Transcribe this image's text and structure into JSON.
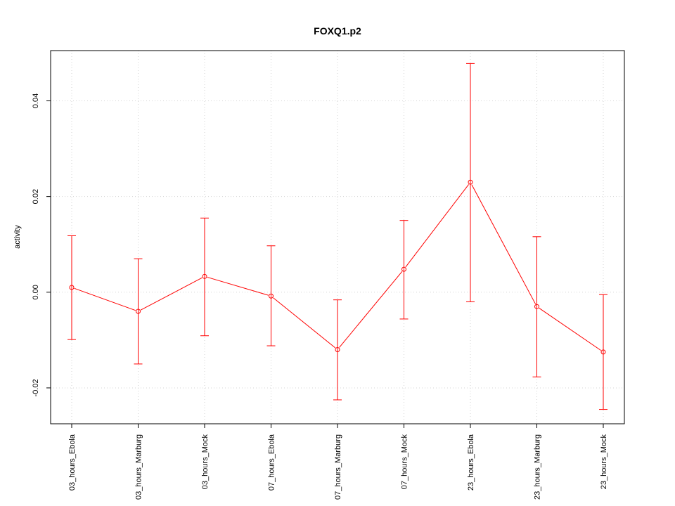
{
  "chart_data": {
    "type": "line",
    "title": "FOXQ1.p2",
    "xlabel": "",
    "ylabel": "activity",
    "categories": [
      "03_hours_Ebola",
      "03_hours_Marburg",
      "03_hours_Mock",
      "07_hours_Ebola",
      "07_hours_Marburg",
      "07_hours_Mock",
      "23_hours_Ebola",
      "23_hours_Marburg",
      "23_hours_Mock"
    ],
    "series": [
      {
        "values": [
          0.001,
          -0.004,
          0.0033,
          -0.0008,
          -0.012,
          0.0048,
          0.023,
          -0.003,
          -0.0125
        ],
        "upper": [
          0.0118,
          0.007,
          0.0155,
          0.0097,
          -0.0016,
          0.015,
          0.0478,
          0.0116,
          -0.0005
        ],
        "lower": [
          -0.0099,
          -0.015,
          -0.0091,
          -0.0112,
          -0.0225,
          -0.0056,
          -0.002,
          -0.0177,
          -0.0245
        ],
        "color": "#ff0000"
      }
    ],
    "yticks": [
      -0.02,
      0.0,
      0.02,
      0.04
    ],
    "ytick_labels": [
      "-0.02",
      "0.00",
      "0.02",
      "0.04"
    ],
    "ylim": [
      -0.0275,
      0.0505
    ],
    "grid": true,
    "colors": {
      "series": "#ff0000",
      "grid": "#d3d3d3",
      "axis": "#000000"
    }
  }
}
